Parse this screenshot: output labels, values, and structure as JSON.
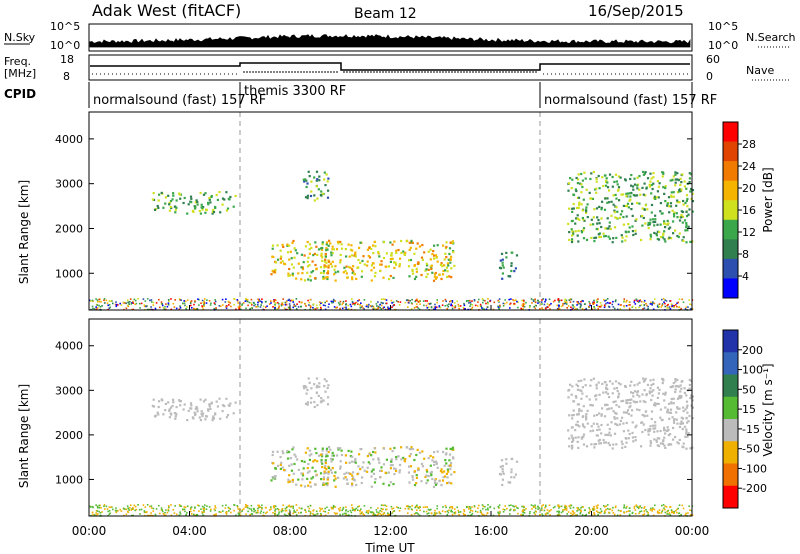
{
  "header": {
    "station": "Adak West (fitACF)",
    "beam": "Beam 12",
    "date": "16/Sep/2015"
  },
  "top_strip": {
    "nsky_label": "N.Sky",
    "nsky_ticks": [
      "10^5",
      "10^0"
    ],
    "nsearch_label": "N.Search",
    "nsearch_ticks": [
      "10^5",
      "10^0"
    ],
    "freq_label_1": "Freq.",
    "freq_label_2": "[MHz]",
    "freq_ticks": [
      "18",
      "8"
    ],
    "nave_label": "Nave",
    "nave_ticks": [
      "60",
      "0"
    ],
    "cpid_label": "CPID",
    "cpid_segments": [
      {
        "label": "normalsound (fast) 157 RF",
        "start_h": 0,
        "end_h": 6
      },
      {
        "label": "themis 3300 RF",
        "start_h": 6,
        "end_h": 18
      },
      {
        "label": "normalsound (fast) 157 RF",
        "start_h": 18,
        "end_h": 24
      }
    ]
  },
  "chart_data": [
    {
      "type": "heatmap",
      "name": "power",
      "ylabel": "Slant Range [km]",
      "xlabel": "Time UT",
      "x_ticks": [
        "00:00",
        "04:00",
        "08:00",
        "12:00",
        "16:00",
        "20:00",
        "00:00"
      ],
      "y_ticks": [
        "1000",
        "2000",
        "3000",
        "4000"
      ],
      "xlim_hours": [
        0,
        24
      ],
      "ylim_km": [
        180,
        4600
      ],
      "colorbar": {
        "label": "Power [dB]",
        "ticks": [
          "4",
          "8",
          "12",
          "16",
          "20",
          "24",
          "28"
        ],
        "range": [
          0,
          30
        ],
        "colors": [
          "#0000ff",
          "#2c4fb0",
          "#2f7f4f",
          "#3aa84a",
          "#cfe01f",
          "#f5b400",
          "#f07b00",
          "#e04400",
          "#ff0000"
        ]
      },
      "echo_regions": [
        {
          "t0": 2.5,
          "t1": 5.8,
          "r0": 2350,
          "r1": 2850,
          "level": 10
        },
        {
          "t0": 7.2,
          "t1": 14.5,
          "r0": 850,
          "r1": 1750,
          "level": 15
        },
        {
          "t0": 8.5,
          "t1": 9.5,
          "r0": 2600,
          "r1": 3300,
          "level": 9
        },
        {
          "t0": 16.3,
          "t1": 17.0,
          "r0": 900,
          "r1": 1500,
          "level": 6
        },
        {
          "t0": 19.0,
          "t1": 24.0,
          "r0": 1700,
          "r1": 3300,
          "level": 10
        }
      ]
    },
    {
      "type": "heatmap",
      "name": "velocity",
      "ylabel": "Slant Range [km]",
      "xlabel": "Time UT",
      "x_ticks": [
        "00:00",
        "04:00",
        "08:00",
        "12:00",
        "16:00",
        "20:00",
        "00:00"
      ],
      "y_ticks": [
        "1000",
        "2000",
        "3000",
        "4000"
      ],
      "xlim_hours": [
        0,
        24
      ],
      "ylim_km": [
        180,
        4600
      ],
      "colorbar": {
        "label": "Velocity [m s⁻¹]",
        "ticks": [
          "200",
          "100",
          "50",
          "15",
          "-15",
          "-50",
          "-100",
          "-200"
        ],
        "colors": [
          "#2233aa",
          "#3366bb",
          "#2f7f4f",
          "#55bb33",
          "#bbbbbb",
          "#f0b000",
          "#f07000",
          "#ff0000"
        ]
      }
    }
  ],
  "x_axis_label": "Time UT"
}
